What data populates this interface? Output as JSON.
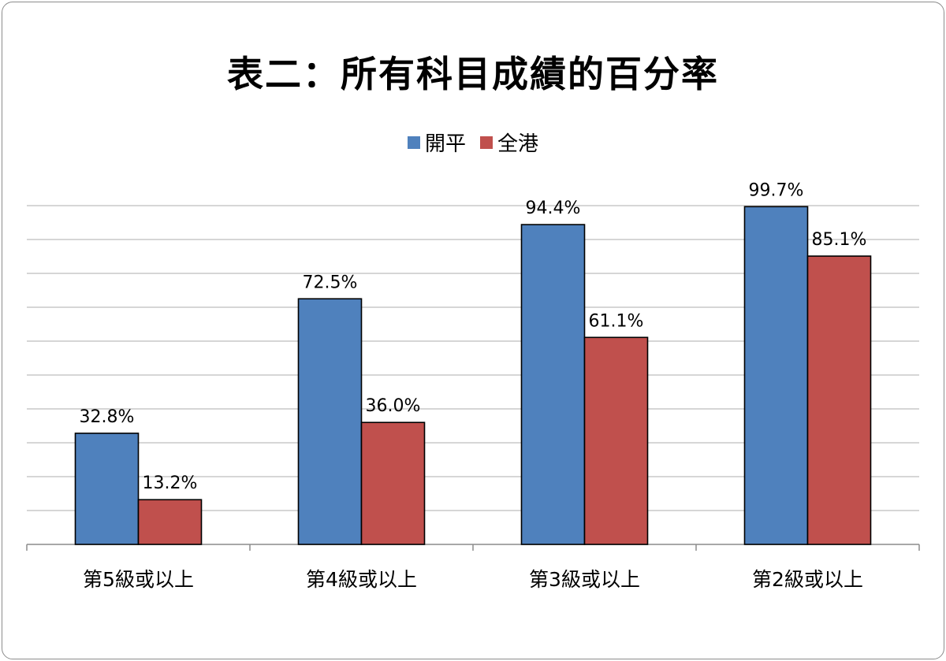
{
  "chart_data": {
    "type": "bar",
    "title": "表二：所有科目成績的百分率",
    "categories": [
      "第5級或以上",
      "第4級或以上",
      "第3級或以上",
      "第2級或以上"
    ],
    "series": [
      {
        "name": "開平",
        "values": [
          32.8,
          72.5,
          94.4,
          99.7
        ],
        "labels": [
          "32.8%",
          "72.5%",
          "94.4%",
          "99.7%"
        ],
        "color": "#4f81bd"
      },
      {
        "name": "全港",
        "values": [
          13.2,
          36.0,
          61.1,
          85.1
        ],
        "labels": [
          "13.2%",
          "36.0%",
          "61.1%",
          "85.1%"
        ],
        "color": "#c0504d"
      }
    ],
    "ylim": [
      0,
      100
    ],
    "grid": true,
    "legend_position": "top"
  }
}
